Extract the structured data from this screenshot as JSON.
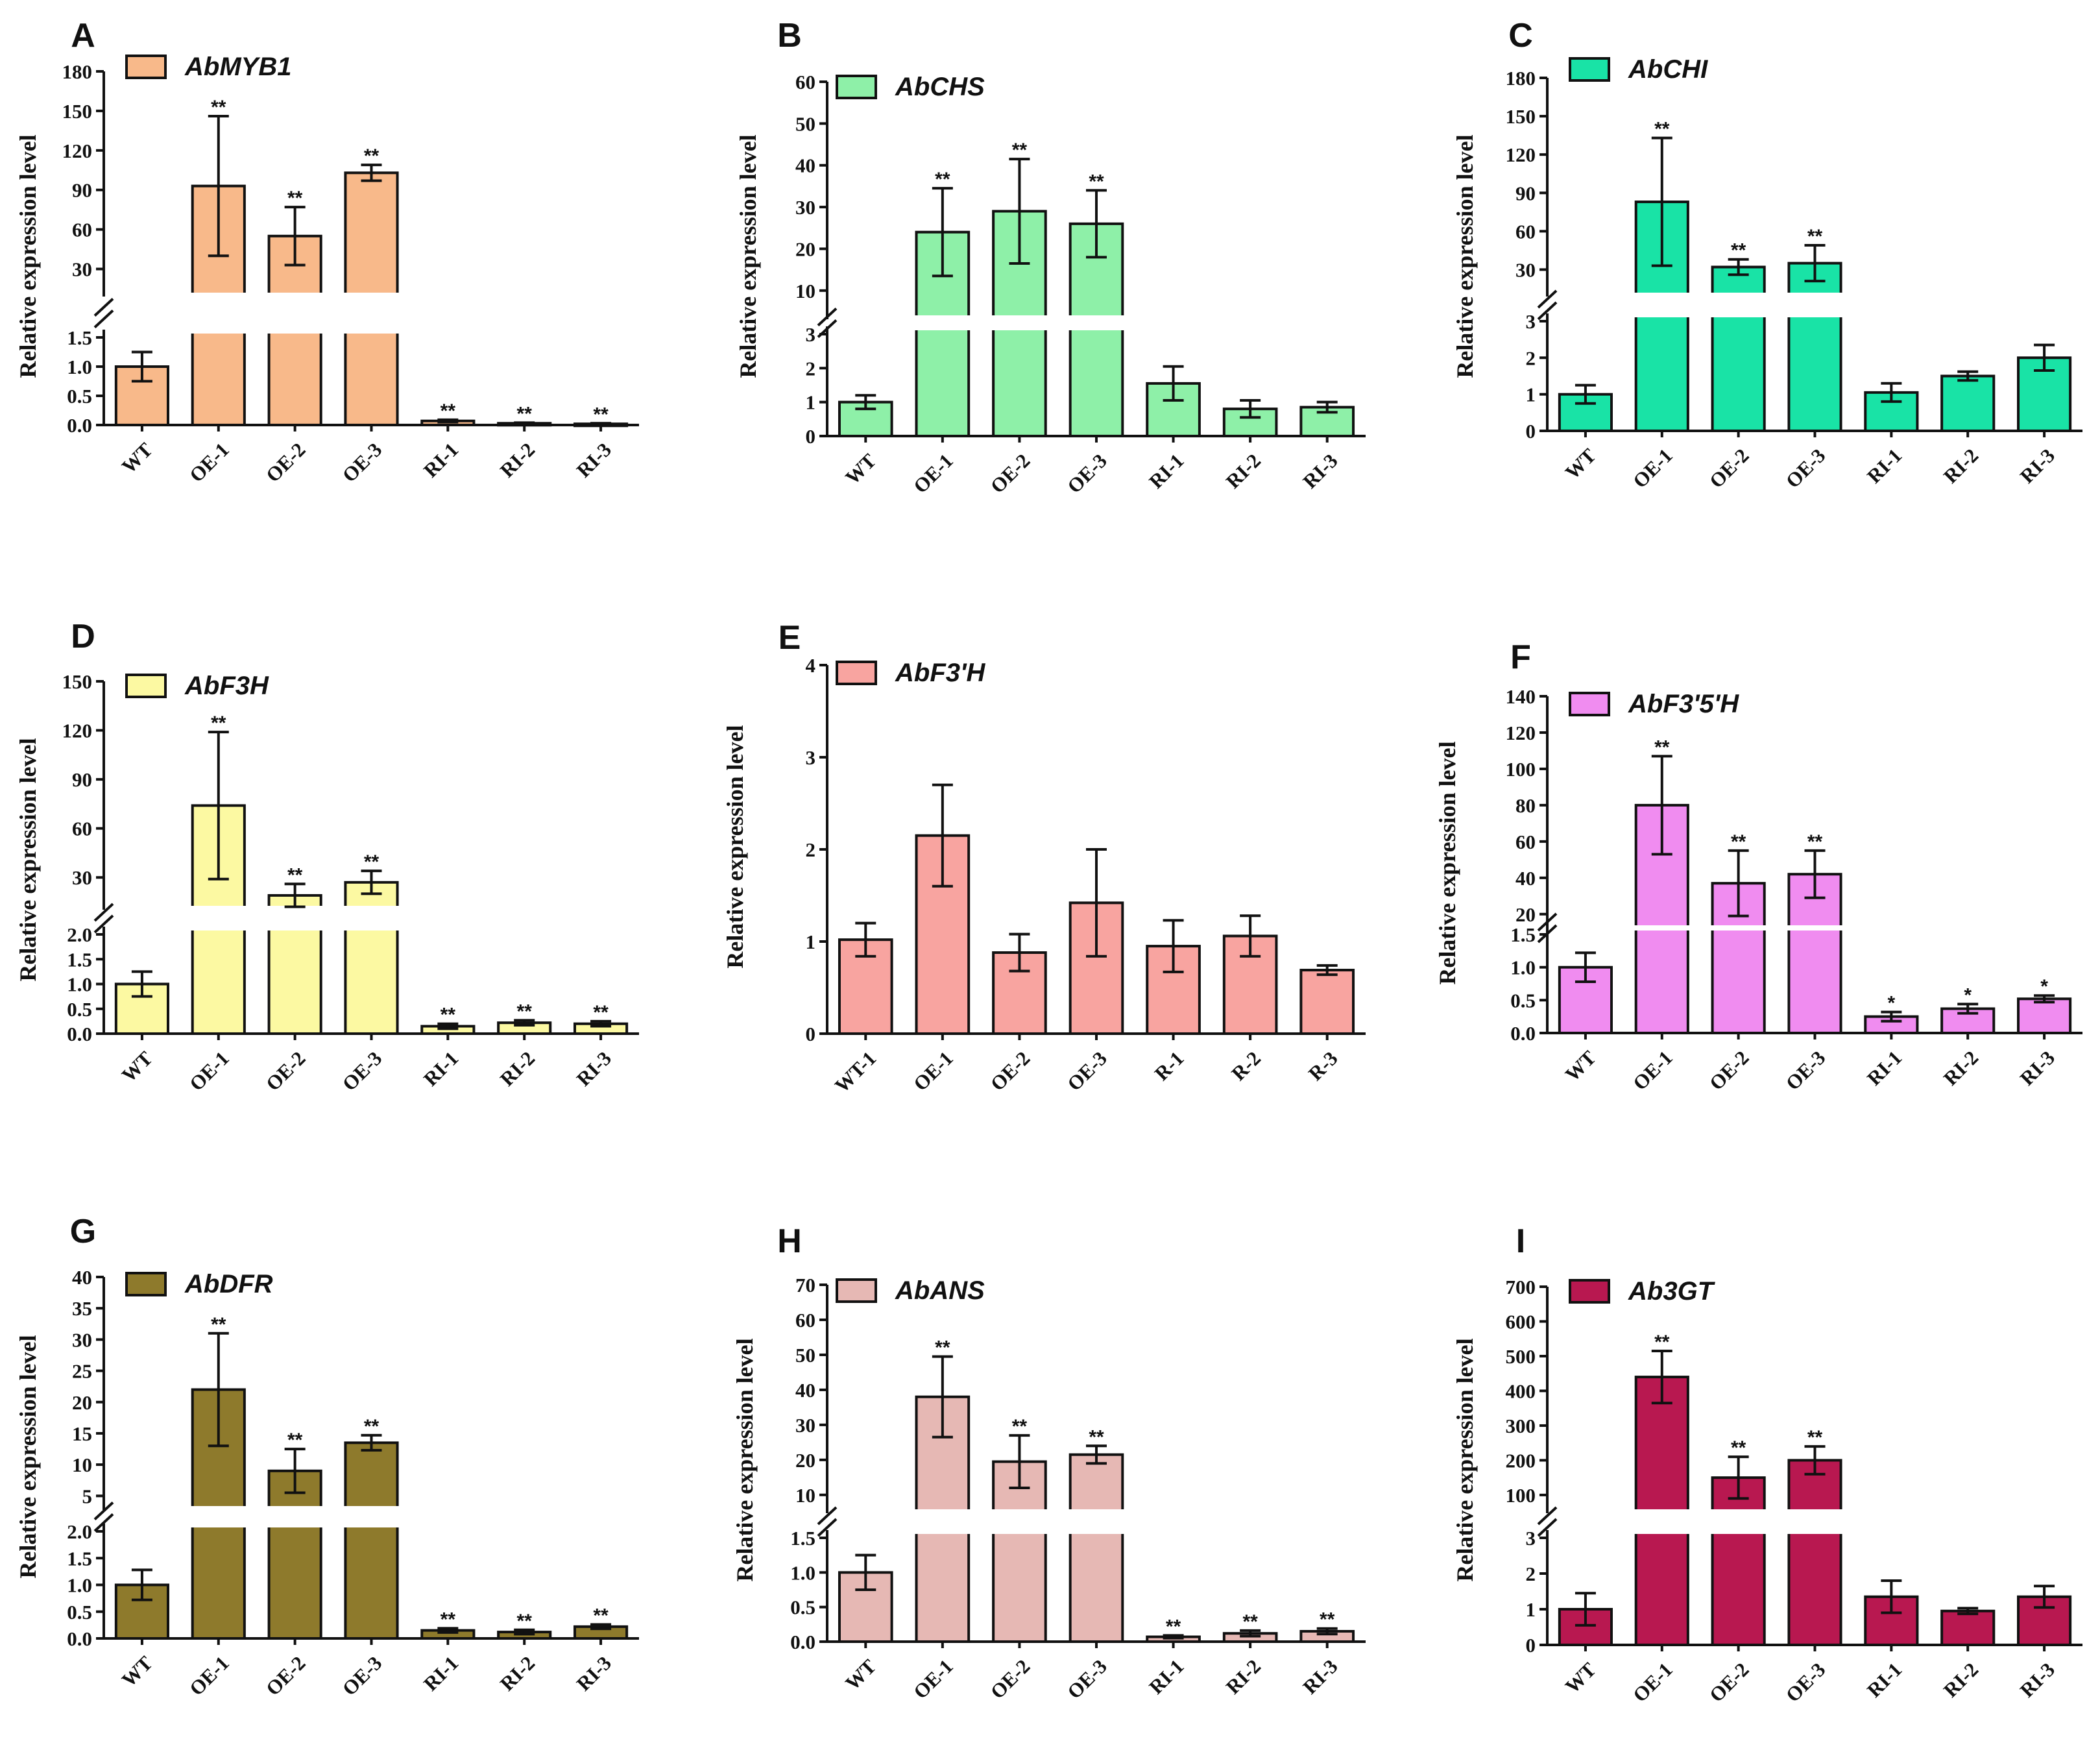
{
  "chart_data": [
    {
      "type": "bar",
      "panel": "A",
      "legend": "AbMYB1",
      "color": "#F8B98A",
      "ylabel": "Relative expression level",
      "categories": [
        "WT",
        "OE-1",
        "OE-2",
        "OE-3",
        "RI-1",
        "RI-2",
        "RI-3"
      ],
      "values": [
        1.0,
        93,
        55,
        103,
        0.07,
        0.03,
        0.02
      ],
      "errors": [
        0.25,
        53,
        22,
        6,
        0.02,
        0.01,
        0.01
      ],
      "significance": [
        "",
        "**",
        "**",
        "**",
        "**",
        "**",
        "**"
      ],
      "y_break": true,
      "lower_ylim": [
        0,
        1.5
      ],
      "lower_ticks": [
        "0.0",
        "0.5",
        "1.0",
        "1.5"
      ],
      "upper_ylim": [
        15,
        180
      ],
      "upper_ticks": [
        "30",
        "60",
        "90",
        "120",
        "150",
        "180"
      ]
    },
    {
      "type": "bar",
      "panel": "B",
      "legend": "AbCHS",
      "color": "#8EF0A8",
      "ylabel": "Relative expression level",
      "categories": [
        "WT",
        "OE-1",
        "OE-2",
        "OE-3",
        "RI-1",
        "RI-2",
        "RI-3"
      ],
      "values": [
        1.0,
        24,
        29,
        26,
        1.55,
        0.8,
        0.85
      ],
      "errors": [
        0.2,
        10.5,
        12.5,
        8,
        0.5,
        0.25,
        0.15
      ],
      "significance": [
        "",
        "**",
        "**",
        "**",
        "",
        "",
        ""
      ],
      "y_break": true,
      "lower_ylim": [
        0,
        3
      ],
      "lower_ticks": [
        "0",
        "1",
        "2",
        "3"
      ],
      "upper_ylim": [
        5,
        60
      ],
      "upper_ticks": [
        "10",
        "20",
        "30",
        "40",
        "50",
        "60"
      ]
    },
    {
      "type": "bar",
      "panel": "C",
      "legend": "AbCHI",
      "color": "#19E3A6",
      "ylabel": "Relative expression level",
      "categories": [
        "WT",
        "OE-1",
        "OE-2",
        "OE-3",
        "RI-1",
        "RI-2",
        "RI-3"
      ],
      "values": [
        1.0,
        83,
        32,
        35,
        1.05,
        1.5,
        2.0
      ],
      "errors": [
        0.25,
        50,
        6,
        14,
        0.25,
        0.12,
        0.35
      ],
      "significance": [
        "",
        "**",
        "**",
        "**",
        "",
        "",
        ""
      ],
      "y_break": true,
      "lower_ylim": [
        0,
        3
      ],
      "lower_ticks": [
        "0",
        "1",
        "2",
        "3"
      ],
      "upper_ylim": [
        15,
        180
      ],
      "upper_ticks": [
        "30",
        "60",
        "90",
        "120",
        "150",
        "180"
      ]
    },
    {
      "type": "bar",
      "panel": "D",
      "legend": "AbF3H",
      "color": "#FCF9A2",
      "ylabel": "Relative expression level",
      "categories": [
        "WT",
        "OE-1",
        "OE-2",
        "OE-3",
        "RI-1",
        "RI-2",
        "RI-3"
      ],
      "values": [
        1.0,
        74,
        19,
        27,
        0.15,
        0.22,
        0.2
      ],
      "errors": [
        0.25,
        45,
        7,
        7,
        0.05,
        0.05,
        0.05
      ],
      "significance": [
        "",
        "**",
        "**",
        "**",
        "**",
        "**",
        "**"
      ],
      "y_break": true,
      "lower_ylim": [
        0,
        2.0
      ],
      "lower_ticks": [
        "0.0",
        "0.5",
        "1.0",
        "1.5",
        "2.0"
      ],
      "upper_ylim": [
        15,
        150
      ],
      "upper_ticks": [
        "30",
        "60",
        "90",
        "120",
        "150"
      ]
    },
    {
      "type": "bar",
      "panel": "E",
      "legend": "AbF3'H",
      "color": "#F8A4A0",
      "ylabel": "Relative expression level",
      "categories": [
        "WT-1",
        "OE-1",
        "OE-2",
        "OE-3",
        "R-1",
        "R-2",
        "R-3"
      ],
      "values": [
        1.02,
        2.15,
        0.88,
        1.42,
        0.95,
        1.06,
        0.69
      ],
      "errors": [
        0.18,
        0.55,
        0.2,
        0.58,
        0.28,
        0.22,
        0.05
      ],
      "significance": [
        "",
        "",
        "",
        "",
        "",
        "",
        ""
      ],
      "y_break": false,
      "ylim": [
        0,
        4
      ],
      "ticks": [
        "0",
        "1",
        "2",
        "3",
        "4"
      ]
    },
    {
      "type": "bar",
      "panel": "F",
      "legend": "AbF3'5'H",
      "color": "#F08CF0",
      "ylabel": "Relative expression level",
      "categories": [
        "WT",
        "OE-1",
        "OE-2",
        "OE-3",
        "RI-1",
        "RI-2",
        "RI-3"
      ],
      "values": [
        1.0,
        80,
        37,
        42,
        0.25,
        0.37,
        0.52
      ],
      "errors": [
        0.22,
        27,
        18,
        13,
        0.07,
        0.07,
        0.05
      ],
      "significance": [
        "",
        "**",
        "**",
        "**",
        "*",
        "*",
        "*"
      ],
      "y_break": true,
      "lower_ylim": [
        0,
        1.5
      ],
      "lower_ticks": [
        "0.0",
        "0.5",
        "1.0",
        "1.5"
      ],
      "upper_ylim": [
        16,
        140
      ],
      "upper_ticks": [
        "20",
        "40",
        "60",
        "80",
        "100",
        "120",
        "140"
      ]
    },
    {
      "type": "bar",
      "panel": "G",
      "legend": "AbDFR",
      "color": "#8E7A2C",
      "ylabel": "Relative expression level",
      "categories": [
        "WT",
        "OE-1",
        "OE-2",
        "OE-3",
        "RI-1",
        "RI-2",
        "RI-3"
      ],
      "values": [
        1.0,
        22,
        9,
        13.5,
        0.15,
        0.12,
        0.22
      ],
      "errors": [
        0.28,
        9,
        3.5,
        1.2,
        0.04,
        0.04,
        0.04
      ],
      "significance": [
        "",
        "**",
        "**",
        "**",
        "**",
        "**",
        "**"
      ],
      "y_break": true,
      "lower_ylim": [
        0,
        2.0
      ],
      "lower_ticks": [
        "0.0",
        "0.5",
        "1.0",
        "1.5",
        "2.0"
      ],
      "upper_ylim": [
        4,
        40
      ],
      "upper_ticks": [
        "5",
        "10",
        "15",
        "20",
        "25",
        "30",
        "35",
        "40"
      ]
    },
    {
      "type": "bar",
      "panel": "H",
      "legend": "AbANS",
      "color": "#E6B8B4",
      "ylabel": "Relative expression level",
      "categories": [
        "WT",
        "OE-1",
        "OE-2",
        "OE-3",
        "RI-1",
        "RI-2",
        "RI-3"
      ],
      "values": [
        1.0,
        38,
        19.5,
        21.5,
        0.07,
        0.12,
        0.15
      ],
      "errors": [
        0.25,
        11.5,
        7.5,
        2.5,
        0.02,
        0.04,
        0.04
      ],
      "significance": [
        "",
        "**",
        "**",
        "**",
        "**",
        "**",
        "**"
      ],
      "y_break": true,
      "lower_ylim": [
        0,
        1.5
      ],
      "lower_ticks": [
        "0.0",
        "0.5",
        "1.0",
        "1.5"
      ],
      "upper_ylim": [
        7,
        70
      ],
      "upper_ticks": [
        "10",
        "20",
        "30",
        "40",
        "50",
        "60",
        "70"
      ]
    },
    {
      "type": "bar",
      "panel": "I",
      "legend": "Ab3GT",
      "color": "#B81850",
      "ylabel": "Relative expression level",
      "categories": [
        "WT",
        "OE-1",
        "OE-2",
        "OE-3",
        "RI-1",
        "RI-2",
        "RI-3"
      ],
      "values": [
        1.0,
        440,
        150,
        200,
        1.35,
        0.95,
        1.35
      ],
      "errors": [
        0.45,
        75,
        60,
        40,
        0.45,
        0.08,
        0.3
      ],
      "significance": [
        "",
        "**",
        "**",
        "**",
        "",
        "",
        ""
      ],
      "y_break": true,
      "lower_ylim": [
        0,
        3
      ],
      "lower_ticks": [
        "0",
        "1",
        "2",
        "3"
      ],
      "upper_ylim": [
        70,
        700
      ],
      "upper_ticks": [
        "100",
        "200",
        "300",
        "400",
        "500",
        "600",
        "700"
      ]
    }
  ]
}
